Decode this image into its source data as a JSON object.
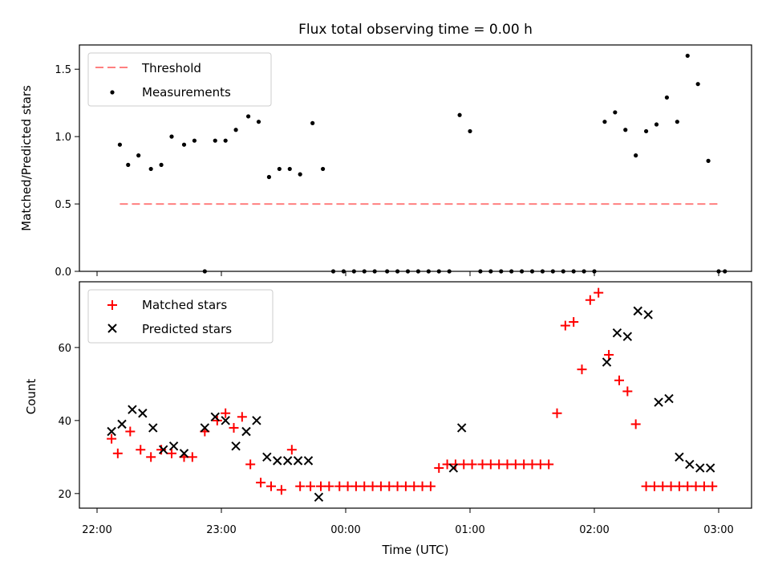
{
  "chart_data": [
    {
      "type": "scatter",
      "title": "Flux total observing time = 0.00 h",
      "xlabel": "",
      "ylabel": "Matched/Predicted stars",
      "ylim": [
        0,
        1.68
      ],
      "yticks": [
        "0.0",
        "0.5",
        "1.0",
        "1.5"
      ],
      "legend_position": "top-left",
      "threshold": {
        "name": "Threshold",
        "value": 0.5,
        "x_start": "22:11",
        "x_end": "03:00",
        "color": "#ff8080"
      },
      "series": [
        {
          "name": "Measurements",
          "color": "#000000",
          "marker": "dot",
          "x": [
            "22:11",
            "22:15",
            "22:20",
            "22:26",
            "22:31",
            "22:36",
            "22:42",
            "22:47",
            "22:52",
            "22:57",
            "23:02",
            "23:07",
            "23:13",
            "23:18",
            "23:23",
            "23:28",
            "23:33",
            "23:38",
            "23:44",
            "23:49",
            "23:54",
            "23:59",
            "00:04",
            "00:09",
            "00:14",
            "00:20",
            "00:25",
            "00:30",
            "00:35",
            "00:40",
            "00:45",
            "00:50",
            "00:55",
            "01:00",
            "01:05",
            "01:10",
            "01:15",
            "01:20",
            "01:25",
            "01:30",
            "01:35",
            "01:40",
            "01:45",
            "01:50",
            "01:55",
            "02:00",
            "02:05",
            "02:10",
            "02:15",
            "02:20",
            "02:25",
            "02:30",
            "02:35",
            "02:40",
            "02:45",
            "02:50",
            "02:55",
            "03:00",
            "03:03"
          ],
          "y": [
            0.94,
            0.79,
            0.86,
            0.76,
            0.79,
            1.0,
            0.94,
            0.97,
            0.0,
            0.97,
            0.97,
            1.05,
            1.15,
            1.11,
            0.7,
            0.76,
            0.76,
            0.72,
            1.1,
            0.76,
            0.0,
            0.0,
            0.0,
            0.0,
            0.0,
            0.0,
            0.0,
            0.0,
            0.0,
            0.0,
            0.0,
            0.0,
            1.16,
            1.04,
            0.0,
            0.0,
            0.0,
            0.0,
            0.0,
            0.0,
            0.0,
            0.0,
            0.0,
            0.0,
            0.0,
            0.0,
            1.11,
            1.18,
            1.05,
            0.86,
            1.04,
            1.09,
            1.29,
            1.11,
            1.6,
            1.39,
            0.82,
            0.0,
            0.0
          ]
        }
      ]
    },
    {
      "type": "scatter",
      "title": "",
      "xlabel": "Time (UTC)",
      "ylabel": "Count",
      "ylim": [
        16,
        78
      ],
      "yticks": [
        "20",
        "40",
        "60"
      ],
      "xticks": [
        "22:00",
        "23:00",
        "00:00",
        "01:00",
        "02:00",
        "03:00"
      ],
      "legend_position": "top-left",
      "series": [
        {
          "name": "Matched stars",
          "color": "#ff0000",
          "marker": "plus",
          "x": [
            "22:07",
            "22:10",
            "22:16",
            "22:21",
            "22:26",
            "22:31",
            "22:36",
            "22:42",
            "22:46",
            "22:52",
            "22:58",
            "23:02",
            "23:06",
            "23:10",
            "23:14",
            "23:19",
            "23:24",
            "23:29",
            "23:34",
            "23:38",
            "23:43",
            "23:48",
            "23:52",
            "23:57",
            "00:01",
            "00:05",
            "00:09",
            "00:13",
            "00:17",
            "00:21",
            "00:25",
            "00:29",
            "00:33",
            "00:37",
            "00:41",
            "00:45",
            "00:49",
            "00:53",
            "00:57",
            "01:01",
            "01:06",
            "01:10",
            "01:14",
            "01:18",
            "01:22",
            "01:26",
            "01:30",
            "01:34",
            "01:38",
            "01:42",
            "01:46",
            "01:50",
            "01:54",
            "01:58",
            "02:02",
            "02:07",
            "02:12",
            "02:16",
            "02:20",
            "02:25",
            "02:29",
            "02:33",
            "02:37",
            "02:41",
            "02:45",
            "02:49",
            "02:53",
            "02:57"
          ],
          "y": [
            35,
            31,
            37,
            32,
            30,
            32,
            31,
            30,
            30,
            37,
            40,
            42,
            38,
            41,
            28,
            23,
            22,
            21,
            32,
            22,
            22,
            22,
            22,
            22,
            22,
            22,
            22,
            22,
            22,
            22,
            22,
            22,
            22,
            22,
            22,
            27,
            28,
            28,
            28,
            28,
            28,
            28,
            28,
            28,
            28,
            28,
            28,
            28,
            28,
            42,
            66,
            67,
            54,
            73,
            75,
            58,
            51,
            48,
            39,
            22,
            22,
            22,
            22,
            22,
            22,
            22,
            22,
            22
          ]
        },
        {
          "name": "Predicted stars",
          "color": "#000000",
          "marker": "x",
          "x": [
            "22:07",
            "22:12",
            "22:17",
            "22:22",
            "22:27",
            "22:32",
            "22:37",
            "22:42",
            "22:52",
            "22:57",
            "23:02",
            "23:07",
            "23:12",
            "23:17",
            "23:22",
            "23:27",
            "23:32",
            "23:37",
            "23:42",
            "23:47",
            "00:52",
            "00:56",
            "02:06",
            "02:11",
            "02:16",
            "02:21",
            "02:26",
            "02:31",
            "02:36",
            "02:41",
            "02:46",
            "02:51",
            "02:56"
          ],
          "y": [
            37,
            39,
            43,
            42,
            38,
            32,
            33,
            31,
            38,
            41,
            40,
            33,
            37,
            40,
            30,
            29,
            29,
            29,
            29,
            19,
            27,
            38,
            56,
            64,
            63,
            70,
            69,
            45,
            46,
            30,
            28,
            27,
            27
          ]
        }
      ]
    }
  ]
}
